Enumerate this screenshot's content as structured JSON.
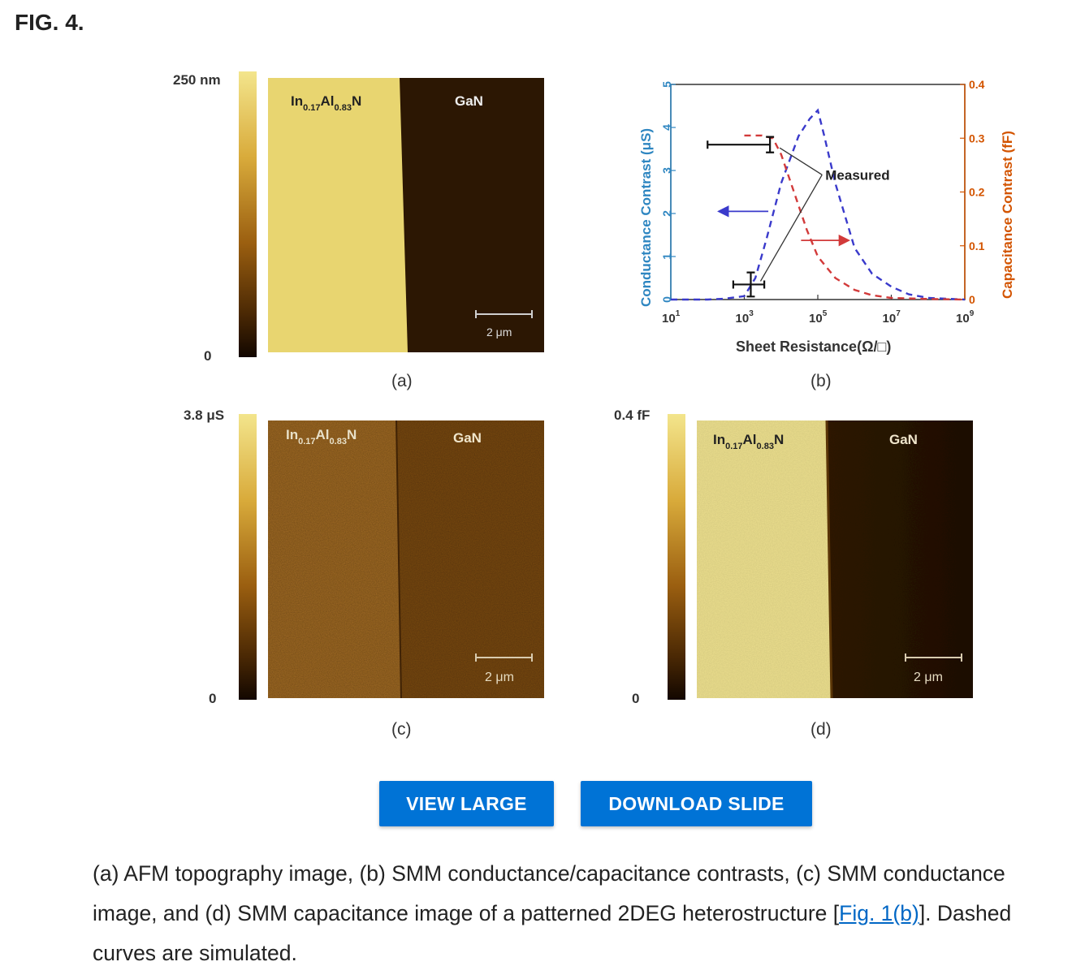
{
  "figure_label": "FIG. 4.",
  "panels": {
    "a": {
      "label": "(a)",
      "scale_top": "250 nm",
      "scale_bottom": "0",
      "region_left_base": "In",
      "region_left_sub1": "0.17",
      "region_left_mid": "Al",
      "region_left_sub2": "0.83",
      "region_left_end": "N",
      "region_right": "GaN",
      "scalebar": "2 μm"
    },
    "b": {
      "label": "(b)",
      "legend_text": "Measured"
    },
    "c": {
      "label": "(c)",
      "scale_top": "3.8 μS",
      "scale_bottom": "0",
      "region_left_base": "In",
      "region_left_sub1": "0.17",
      "region_left_mid": "Al",
      "region_left_sub2": "0.83",
      "region_left_end": "N",
      "region_right": "GaN",
      "scalebar": "2 μm"
    },
    "d": {
      "label": "(d)",
      "scale_top": "0.4 fF",
      "scale_bottom": "0",
      "region_left_base": "In",
      "region_left_sub1": "0.17",
      "region_left_mid": "Al",
      "region_left_sub2": "0.83",
      "region_left_end": "N",
      "region_right": "GaN",
      "scalebar": "2 μm"
    }
  },
  "chart_data": {
    "type": "line",
    "xlabel": "Sheet Resistance(Ω/□)",
    "ylabel": "Conductance Contrast (μS)",
    "y2label": "Capacitance Contrast (fF)",
    "xscale": "log",
    "xlim": [
      10,
      1000000000
    ],
    "ylim": [
      0,
      5
    ],
    "y2lim": [
      0,
      0.4
    ],
    "x_tick_bases": [
      "10",
      "10",
      "10",
      "10",
      "10"
    ],
    "x_tick_exps": [
      "1",
      "3",
      "5",
      "7",
      "9"
    ],
    "x_ticks": [
      10,
      1000,
      100000,
      10000000,
      1000000000
    ],
    "y_ticks": [
      "0",
      "1",
      "2",
      "3",
      "4",
      "5"
    ],
    "y2_ticks": [
      "0",
      "0.1",
      "0.2",
      "0.3",
      "0.4"
    ],
    "axis_colors": {
      "left": "#2e86c1",
      "right": "#d35400"
    },
    "series": [
      {
        "style": "dashed",
        "color": "#3a3acb",
        "axis": "left",
        "x": [
          10,
          100,
          300,
          1000,
          2000,
          4000,
          10000,
          30000,
          60000,
          100000,
          150000,
          300000,
          1000000,
          3000000,
          10000000,
          30000000,
          100000000,
          1000000000
        ],
        "y": [
          0.0,
          0.0,
          0.02,
          0.08,
          0.5,
          1.4,
          2.7,
          3.8,
          4.2,
          4.4,
          3.8,
          2.7,
          1.2,
          0.6,
          0.3,
          0.12,
          0.04,
          0.0
        ]
      },
      {
        "style": "dashed",
        "color": "#d23a3a",
        "axis": "right",
        "x": [
          1000,
          3000,
          6000,
          10000,
          20000,
          50000,
          100000,
          300000,
          1000000,
          3000000,
          10000000,
          100000000,
          1000000000
        ],
        "y": [
          0.305,
          0.305,
          0.3,
          0.27,
          0.21,
          0.13,
          0.08,
          0.04,
          0.018,
          0.008,
          0.003,
          0.001,
          0.0
        ]
      },
      {
        "style": "points",
        "color": "#111111",
        "axis": "left",
        "x": [
          5000,
          1500
        ],
        "y": [
          3.6,
          0.35
        ],
        "xerr_low": [
          100,
          500
        ],
        "xerr_high": [
          5000,
          3500
        ],
        "yerr": [
          0.18,
          0.28
        ]
      }
    ],
    "arrows": [
      {
        "color": "#3a3acb",
        "axis": "left",
        "x_from": 4500,
        "x_to": 200,
        "y": 2.05
      },
      {
        "color": "#d23a3a",
        "axis": "right",
        "x_from": 35000,
        "x_to": 700000,
        "y": 0.11
      }
    ],
    "annotation": {
      "text": "Measured",
      "x": 1000000,
      "y": 2.9
    }
  },
  "buttons": {
    "view_large": "VIEW LARGE",
    "download_slide": "DOWNLOAD SLIDE"
  },
  "caption": {
    "before": "(a) AFM topography image, (b) SMM conductance/capacitance contrasts, (c) SMM conductance image, and (d) SMM capacitance image of a patterned 2DEG heterostructure [",
    "link": "Fig. 1(b)",
    "after": "]. Dashed curves are simulated."
  }
}
